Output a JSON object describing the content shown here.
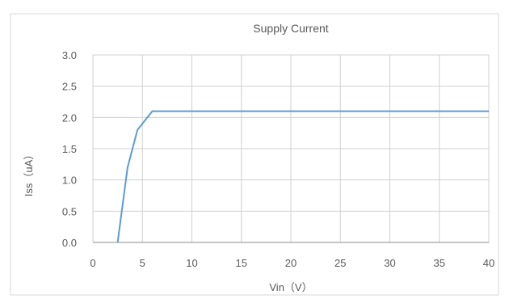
{
  "chart_data": {
    "type": "line",
    "title": "Supply Current",
    "xlabel": "Vin（V）",
    "ylabel": "Iss（uA）",
    "xlim": [
      0,
      40
    ],
    "ylim": [
      0.0,
      3.0
    ],
    "x_ticks": [
      "0",
      "5",
      "10",
      "15",
      "20",
      "25",
      "30",
      "35",
      "40"
    ],
    "y_ticks": [
      "0.0",
      "0.5",
      "1.0",
      "1.5",
      "2.0",
      "2.5",
      "3.0"
    ],
    "grid": true,
    "series": [
      {
        "color": "#5b9bd5",
        "x": [
          2.5,
          3.5,
          4.5,
          6.0,
          40.0
        ],
        "y": [
          0.0,
          1.2,
          1.8,
          2.1,
          2.1
        ]
      }
    ]
  }
}
